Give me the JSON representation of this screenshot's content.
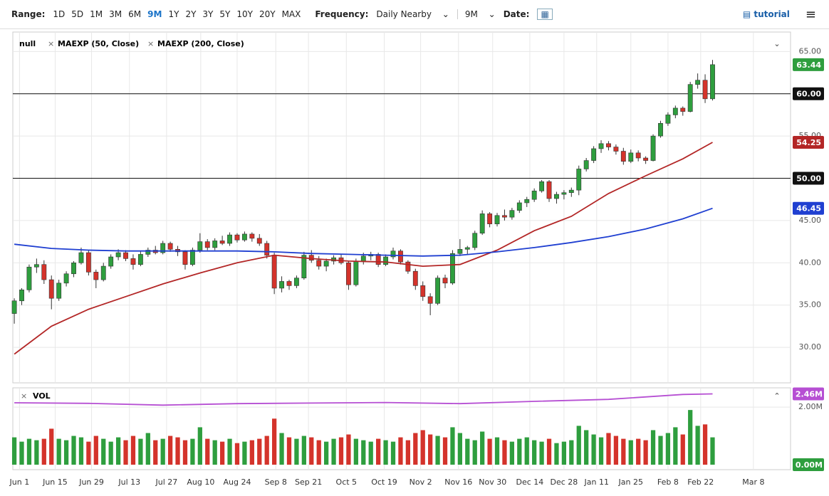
{
  "toolbar": {
    "range_label": "Range:",
    "ranges": [
      "1D",
      "5D",
      "1M",
      "3M",
      "6M",
      "9M",
      "1Y",
      "2Y",
      "3Y",
      "5Y",
      "10Y",
      "20Y",
      "MAX"
    ],
    "selected": "9M",
    "frequency_label": "Frequency:",
    "frequency": "Daily Nearby",
    "period": "9M",
    "date_label": "Date:",
    "tutorial": "tutorial"
  },
  "chart_data": [
    {
      "type": "candlestick",
      "symbol": "null",
      "up_color": "#2e9e3e",
      "down_color": "#d4332b",
      "xlim": [
        -0.2,
        104.5
      ],
      "ylim": [
        25.8,
        67.3
      ],
      "xticks": [
        {
          "value": 0.7,
          "label": "Jun 1"
        },
        {
          "value": 5.5,
          "label": "Jun 15"
        },
        {
          "value": 10.4,
          "label": "Jun 29"
        },
        {
          "value": 15.5,
          "label": "Jul 13"
        },
        {
          "value": 20.5,
          "label": "Jul 27"
        },
        {
          "value": 25.1,
          "label": "Aug 10"
        },
        {
          "value": 30,
          "label": "Aug 24"
        },
        {
          "value": 35.2,
          "label": "Sep 8"
        },
        {
          "value": 39.6,
          "label": "Sep 21"
        },
        {
          "value": 44.7,
          "label": "Oct 5"
        },
        {
          "value": 49.8,
          "label": "Oct 19"
        },
        {
          "value": 54.7,
          "label": "Nov 2"
        },
        {
          "value": 59.8,
          "label": "Nov 16"
        },
        {
          "value": 64.4,
          "label": "Nov 30"
        },
        {
          "value": 69.4,
          "label": "Dec 14"
        },
        {
          "value": 74,
          "label": "Dec 28"
        },
        {
          "value": 78.4,
          "label": "Jan 11"
        },
        {
          "value": 83,
          "label": "Jan 25"
        },
        {
          "value": 88,
          "label": "Feb 8"
        },
        {
          "value": 92.4,
          "label": "Feb 22"
        },
        {
          "value": 99.5,
          "label": "Mar 8"
        }
      ],
      "yticks": [
        {
          "value": 30,
          "label": "30.00"
        },
        {
          "value": 35,
          "label": "35.00"
        },
        {
          "value": 40,
          "label": "40.00"
        },
        {
          "value": 45,
          "label": "45.00"
        },
        {
          "value": 50,
          "label": "50.00"
        },
        {
          "value": 55,
          "label": "55.00"
        },
        {
          "value": 60,
          "label": "60.00"
        },
        {
          "value": 65,
          "label": "65.00"
        }
      ],
      "hlines": [
        {
          "value": 60,
          "label": "60.00"
        },
        {
          "value": 50,
          "label": "50.00"
        }
      ],
      "candles": [
        [
          34.0,
          35.8,
          32.8,
          35.5
        ],
        [
          35.5,
          37.0,
          35.0,
          36.8
        ],
        [
          36.8,
          39.8,
          36.5,
          39.5
        ],
        [
          39.5,
          40.5,
          38.8,
          39.8
        ],
        [
          39.8,
          40.3,
          37.5,
          38.0
        ],
        [
          38.0,
          38.5,
          34.5,
          35.8
        ],
        [
          35.8,
          38.0,
          35.5,
          37.6
        ],
        [
          37.6,
          39.0,
          37.2,
          38.7
        ],
        [
          38.7,
          40.2,
          38.3,
          40.0
        ],
        [
          40.0,
          41.8,
          39.8,
          41.2
        ],
        [
          41.2,
          41.5,
          38.5,
          38.9
        ],
        [
          38.9,
          39.2,
          37.0,
          38.0
        ],
        [
          38.0,
          40.0,
          37.8,
          39.6
        ],
        [
          39.6,
          41.0,
          39.3,
          40.7
        ],
        [
          40.7,
          41.6,
          40.3,
          41.2
        ],
        [
          41.2,
          41.5,
          40.2,
          40.5
        ],
        [
          40.5,
          41.0,
          39.2,
          39.8
        ],
        [
          39.8,
          41.4,
          39.6,
          41.0
        ],
        [
          41.0,
          41.8,
          40.7,
          41.5
        ],
        [
          41.5,
          42.0,
          41.0,
          41.2
        ],
        [
          41.2,
          42.6,
          41.0,
          42.3
        ],
        [
          42.3,
          42.5,
          41.3,
          41.6
        ],
        [
          41.6,
          42.0,
          40.8,
          41.3
        ],
        [
          41.3,
          41.5,
          39.2,
          39.8
        ],
        [
          39.8,
          41.8,
          39.6,
          41.5
        ],
        [
          41.5,
          43.5,
          41.2,
          42.5
        ],
        [
          42.5,
          42.8,
          41.5,
          41.8
        ],
        [
          41.8,
          42.9,
          41.5,
          42.6
        ],
        [
          42.6,
          43.2,
          42.1,
          42.3
        ],
        [
          42.3,
          43.6,
          42.0,
          43.3
        ],
        [
          43.3,
          43.5,
          42.4,
          42.7
        ],
        [
          42.7,
          43.7,
          42.5,
          43.4
        ],
        [
          43.4,
          43.6,
          42.5,
          42.9
        ],
        [
          42.9,
          43.4,
          42.0,
          42.3
        ],
        [
          42.3,
          42.6,
          40.5,
          40.9
        ],
        [
          40.9,
          41.2,
          36.3,
          37.0
        ],
        [
          37.0,
          38.4,
          36.5,
          37.8
        ],
        [
          37.8,
          38.0,
          36.8,
          37.3
        ],
        [
          37.3,
          38.5,
          37.0,
          38.2
        ],
        [
          38.2,
          41.3,
          38.0,
          40.9
        ],
        [
          40.9,
          41.5,
          40.0,
          40.3
        ],
        [
          40.3,
          40.8,
          39.2,
          39.6
        ],
        [
          39.6,
          40.5,
          39.0,
          40.2
        ],
        [
          40.2,
          40.9,
          39.8,
          40.6
        ],
        [
          40.6,
          41.0,
          39.8,
          40.0
        ],
        [
          40.0,
          40.2,
          36.8,
          37.4
        ],
        [
          37.4,
          40.5,
          37.2,
          40.2
        ],
        [
          40.2,
          41.2,
          39.8,
          40.8
        ],
        [
          40.8,
          41.3,
          40.3,
          41.0
        ],
        [
          41.0,
          41.2,
          39.5,
          39.8
        ],
        [
          39.8,
          41.0,
          39.6,
          40.7
        ],
        [
          40.7,
          41.8,
          40.4,
          41.4
        ],
        [
          41.4,
          41.6,
          39.8,
          40.1
        ],
        [
          40.1,
          40.3,
          38.7,
          39.0
        ],
        [
          39.0,
          39.3,
          36.8,
          37.3
        ],
        [
          37.3,
          37.8,
          35.5,
          36.0
        ],
        [
          36.0,
          36.4,
          33.8,
          35.2
        ],
        [
          35.2,
          38.5,
          35.0,
          38.2
        ],
        [
          38.2,
          38.6,
          37.0,
          37.6
        ],
        [
          37.6,
          41.5,
          37.4,
          41.1
        ],
        [
          41.1,
          42.8,
          40.8,
          41.6
        ],
        [
          41.6,
          42.0,
          41.0,
          41.8
        ],
        [
          41.8,
          43.8,
          41.5,
          43.5
        ],
        [
          43.5,
          46.2,
          43.3,
          45.8
        ],
        [
          45.8,
          46.0,
          44.2,
          44.6
        ],
        [
          44.6,
          45.9,
          44.3,
          45.6
        ],
        [
          45.6,
          46.3,
          45.0,
          45.4
        ],
        [
          45.4,
          46.5,
          45.1,
          46.2
        ],
        [
          46.2,
          47.4,
          45.9,
          47.1
        ],
        [
          47.1,
          47.8,
          46.6,
          47.5
        ],
        [
          47.5,
          48.8,
          47.2,
          48.5
        ],
        [
          48.5,
          49.8,
          48.3,
          49.6
        ],
        [
          49.6,
          49.8,
          47.2,
          47.6
        ],
        [
          47.6,
          48.4,
          47.0,
          48.1
        ],
        [
          48.1,
          48.6,
          47.5,
          48.3
        ],
        [
          48.3,
          48.9,
          47.8,
          48.6
        ],
        [
          48.6,
          51.5,
          48.0,
          51.1
        ],
        [
          51.1,
          52.4,
          50.8,
          52.1
        ],
        [
          52.1,
          53.8,
          51.8,
          53.5
        ],
        [
          53.5,
          54.5,
          53.0,
          54.1
        ],
        [
          54.1,
          54.4,
          53.3,
          53.7
        ],
        [
          53.7,
          54.0,
          52.8,
          53.2
        ],
        [
          53.2,
          53.6,
          51.6,
          52.0
        ],
        [
          52.0,
          53.4,
          51.8,
          53.0
        ],
        [
          53.0,
          53.3,
          52.0,
          52.4
        ],
        [
          52.4,
          52.6,
          51.7,
          52.1
        ],
        [
          52.1,
          55.2,
          52.0,
          55.0
        ],
        [
          55.0,
          56.8,
          54.8,
          56.5
        ],
        [
          56.5,
          57.8,
          56.2,
          57.5
        ],
        [
          57.5,
          58.6,
          57.1,
          58.3
        ],
        [
          58.3,
          58.5,
          57.4,
          57.9
        ],
        [
          57.9,
          61.4,
          57.8,
          61.1
        ],
        [
          61.1,
          62.4,
          60.6,
          61.6
        ],
        [
          61.6,
          62.3,
          58.9,
          59.4
        ],
        [
          59.4,
          64.0,
          59.2,
          63.44
        ]
      ],
      "series": [
        {
          "name": "MAEXP (50, Close)",
          "color": "#b32626",
          "x": [
            0,
            5,
            10,
            15,
            20,
            25,
            30,
            35,
            40,
            45,
            50,
            55,
            60,
            65,
            70,
            75,
            80,
            85,
            90,
            94
          ],
          "values": [
            29.2,
            32.5,
            34.5,
            36,
            37.5,
            38.8,
            40,
            40.9,
            40.5,
            40.2,
            40.1,
            39.6,
            39.8,
            41.5,
            43.8,
            45.5,
            48.2,
            50.3,
            52.3,
            54.25
          ]
        },
        {
          "name": "MAEXP (200, Close)",
          "color": "#1f3fd1",
          "x": [
            0,
            5,
            10,
            15,
            20,
            25,
            30,
            35,
            40,
            45,
            50,
            55,
            60,
            65,
            70,
            75,
            80,
            85,
            90,
            94
          ],
          "values": [
            42.2,
            41.7,
            41.5,
            41.4,
            41.4,
            41.4,
            41.4,
            41.3,
            41.1,
            41,
            40.9,
            40.8,
            40.9,
            41.3,
            41.8,
            42.4,
            43.1,
            44,
            45.2,
            46.45
          ]
        }
      ]
    },
    {
      "type": "bar",
      "label": "VOL",
      "ylim": [
        0,
        2.67
      ],
      "yticks": [
        {
          "value": 0,
          "label": "0.00M"
        },
        {
          "value": 2,
          "label": "2.00M"
        }
      ],
      "values": [
        0.95,
        0.8,
        0.9,
        0.85,
        0.9,
        1.25,
        0.9,
        0.85,
        1.0,
        0.95,
        0.8,
        1.0,
        0.9,
        0.8,
        0.95,
        0.85,
        1.0,
        0.9,
        1.1,
        0.85,
        0.9,
        1.0,
        0.95,
        0.85,
        0.9,
        1.3,
        0.9,
        0.85,
        0.8,
        0.9,
        0.75,
        0.8,
        0.85,
        0.9,
        1.0,
        1.6,
        1.1,
        0.95,
        0.9,
        1.0,
        0.95,
        0.85,
        0.8,
        0.9,
        0.95,
        1.05,
        0.9,
        0.85,
        0.8,
        0.9,
        0.85,
        0.8,
        0.95,
        0.85,
        1.1,
        1.2,
        1.05,
        1.0,
        0.95,
        1.3,
        1.1,
        0.9,
        0.85,
        1.15,
        0.9,
        0.95,
        0.85,
        0.8,
        0.9,
        0.95,
        0.85,
        0.8,
        0.9,
        0.75,
        0.8,
        0.85,
        1.35,
        1.2,
        1.05,
        0.95,
        1.1,
        1.0,
        0.9,
        0.85,
        0.9,
        0.85,
        1.2,
        1.0,
        1.1,
        1.3,
        1.05,
        1.9,
        1.35,
        1.4,
        0.95
      ],
      "ma": {
        "color": "#b64fd3",
        "x": [
          0,
          10,
          20,
          30,
          40,
          50,
          60,
          70,
          80,
          90,
          94
        ],
        "values": [
          2.15,
          2.13,
          2.07,
          2.12,
          2.14,
          2.16,
          2.12,
          2.2,
          2.27,
          2.44,
          2.46
        ],
        "tag": {
          "value": 2.46,
          "label": "2.46M"
        }
      }
    }
  ]
}
